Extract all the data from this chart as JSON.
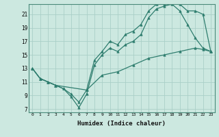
{
  "xlabel": "Humidex (Indice chaleur)",
  "bg_color": "#cce8e0",
  "grid_color": "#aacfc8",
  "line_color": "#2e7d6e",
  "xlim": [
    -0.5,
    23.5
  ],
  "ylim": [
    6.5,
    22.5
  ],
  "yticks": [
    7,
    9,
    11,
    13,
    15,
    17,
    19,
    21
  ],
  "xticks": [
    0,
    1,
    2,
    3,
    4,
    5,
    6,
    7,
    8,
    9,
    10,
    11,
    12,
    13,
    14,
    15,
    16,
    17,
    18,
    19,
    20,
    21,
    22,
    23
  ],
  "line1_x": [
    0,
    1,
    2,
    3,
    4,
    5,
    6,
    7,
    8,
    9,
    10,
    11,
    12,
    13,
    14,
    15,
    16,
    17,
    18,
    19,
    20,
    21,
    22,
    23
  ],
  "line1_y": [
    13.0,
    11.5,
    11.0,
    10.5,
    10.0,
    8.8,
    7.2,
    9.2,
    13.5,
    15.0,
    16.0,
    15.5,
    16.5,
    17.0,
    18.0,
    20.5,
    21.8,
    22.2,
    22.5,
    21.5,
    19.5,
    17.5,
    16.0,
    15.5
  ],
  "line2_x": [
    0,
    1,
    2,
    3,
    4,
    5,
    6,
    7,
    8,
    9,
    10,
    11,
    12,
    13,
    14,
    15,
    16,
    17,
    18,
    19,
    20,
    21,
    22,
    23
  ],
  "line2_y": [
    13.0,
    11.5,
    11.0,
    10.5,
    10.0,
    9.2,
    8.0,
    9.8,
    14.2,
    15.5,
    17.0,
    16.5,
    18.0,
    18.5,
    19.5,
    21.5,
    22.5,
    22.5,
    22.8,
    22.5,
    21.5,
    21.5,
    21.0,
    15.5
  ],
  "line3_x": [
    0,
    1,
    3,
    7,
    9,
    11,
    13,
    15,
    17,
    19,
    21,
    22,
    23
  ],
  "line3_y": [
    13.0,
    11.5,
    10.5,
    9.8,
    12.0,
    12.5,
    13.5,
    14.5,
    15.0,
    15.5,
    16.0,
    15.8,
    15.5
  ]
}
